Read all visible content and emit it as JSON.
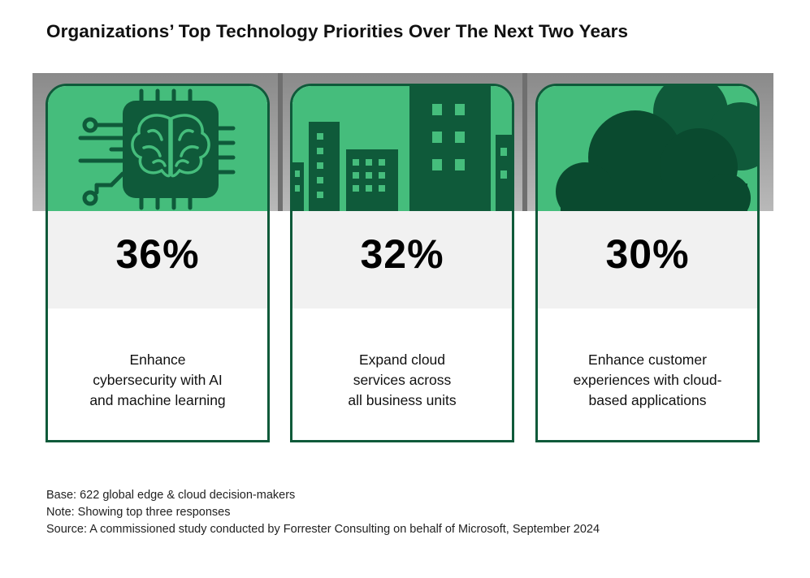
{
  "title": "Organizations’ Top Technology Priorities Over The Next Two Years",
  "colors": {
    "accent_green": "#45bd7c",
    "dark_green": "#0f5a3a",
    "band_gray": "#a0a0a0",
    "pct_bg": "#f1f1f1"
  },
  "chart_data": {
    "type": "table",
    "title": "Organizations’ Top Technology Priorities Over The Next Two Years",
    "unit": "%",
    "categories": [
      "Enhance cybersecurity with AI and machine learning",
      "Expand cloud services across all business units",
      "Enhance customer experiences with cloud-based applications"
    ],
    "values": [
      36,
      32,
      30
    ],
    "items": [
      {
        "icon": "ai-chip-brain-icon",
        "value": 36,
        "label": "36%",
        "lines": [
          "Enhance",
          "cybersecurity with AI",
          "and machine learning"
        ]
      },
      {
        "icon": "city-buildings-icon",
        "value": 32,
        "label": "32%",
        "lines": [
          "Expand cloud",
          "services across",
          "all business units"
        ]
      },
      {
        "icon": "cloud-icon",
        "value": 30,
        "label": "30%",
        "lines": [
          "Enhance customer",
          "experiences with cloud-",
          "based applications"
        ]
      }
    ]
  },
  "footnotes": {
    "base": "Base: 622 global edge & cloud decision-makers",
    "note": "Note: Showing top three responses",
    "source": "Source: A commissioned study conducted by Forrester Consulting on behalf of Microsoft, September 2024"
  }
}
